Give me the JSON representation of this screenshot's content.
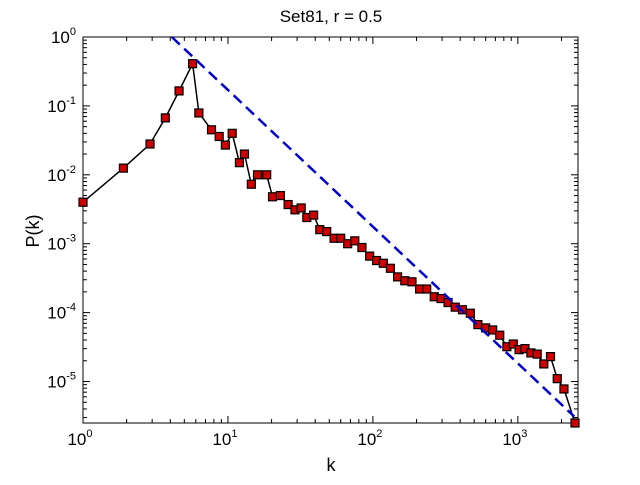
{
  "chart_data": {
    "type": "line",
    "title": "Set81, r = 0.5",
    "xlabel": "k",
    "ylabel": "P(k)",
    "xscale": "log",
    "yscale": "log",
    "xlim": [
      1,
      2600
    ],
    "ylim": [
      2.5e-06,
      1
    ],
    "grid": false,
    "legend": "none",
    "x_ticks": [
      {
        "value": 1,
        "base": "10",
        "exp": "0"
      },
      {
        "value": 10,
        "base": "10",
        "exp": "1"
      },
      {
        "value": 100,
        "base": "10",
        "exp": "2"
      },
      {
        "value": 1000,
        "base": "10",
        "exp": "3"
      }
    ],
    "y_ticks": [
      {
        "value": 1e-05,
        "base": "10",
        "exp": "-5"
      },
      {
        "value": 0.0001,
        "base": "10",
        "exp": "-4"
      },
      {
        "value": 0.001,
        "base": "10",
        "exp": "-3"
      },
      {
        "value": 0.01,
        "base": "10",
        "exp": "-2"
      },
      {
        "value": 0.1,
        "base": "10",
        "exp": "-1"
      },
      {
        "value": 1,
        "base": "10",
        "exp": "0"
      }
    ],
    "series": [
      {
        "style": "black line with red square markers",
        "color": "#000000",
        "marker_color": "#cc0000",
        "points": [
          [
            1,
            0.004
          ],
          [
            1.9,
            0.0125
          ],
          [
            2.9,
            0.028
          ],
          [
            3.7,
            0.067
          ],
          [
            4.6,
            0.165
          ],
          [
            5.7,
            0.41
          ],
          [
            6.3,
            0.079
          ],
          [
            7.7,
            0.045
          ],
          [
            8.7,
            0.036
          ],
          [
            9.6,
            0.027
          ],
          [
            10.7,
            0.04
          ],
          [
            12,
            0.015
          ],
          [
            13,
            0.02
          ],
          [
            14.5,
            0.0073
          ],
          [
            16,
            0.01
          ],
          [
            18.5,
            0.01
          ],
          [
            20.3,
            0.0048
          ],
          [
            23,
            0.005
          ],
          [
            26,
            0.0037
          ],
          [
            29,
            0.0031
          ],
          [
            32,
            0.0033
          ],
          [
            35,
            0.0024
          ],
          [
            39,
            0.0026
          ],
          [
            43,
            0.0016
          ],
          [
            48,
            0.0015
          ],
          [
            54,
            0.0012
          ],
          [
            60,
            0.0012
          ],
          [
            67,
            0.001
          ],
          [
            75,
            0.0011
          ],
          [
            84,
            0.00088
          ],
          [
            95,
            0.00066
          ],
          [
            106,
            0.00057
          ],
          [
            118,
            0.00052
          ],
          [
            132,
            0.00044
          ],
          [
            148,
            0.00033
          ],
          [
            166,
            0.00029
          ],
          [
            186,
            0.00028
          ],
          [
            210,
            0.00022
          ],
          [
            235,
            0.00022
          ],
          [
            265,
            0.00017
          ],
          [
            295,
            0.00016
          ],
          [
            330,
            0.00014
          ],
          [
            370,
            0.00012
          ],
          [
            415,
            0.00011
          ],
          [
            470,
            9.8e-05
          ],
          [
            530,
            6.7e-05
          ],
          [
            600,
            6e-05
          ],
          [
            670,
            5.6e-05
          ],
          [
            750,
            4.7e-05
          ],
          [
            840,
            3.2e-05
          ],
          [
            930,
            3.5e-05
          ],
          [
            1020,
            2.9e-05
          ],
          [
            1120,
            3e-05
          ],
          [
            1230,
            2.6e-05
          ],
          [
            1360,
            2.5e-05
          ],
          [
            1510,
            1.8e-05
          ],
          [
            1680,
            2.3e-05
          ],
          [
            1870,
            1.1e-05
          ],
          [
            2080,
            7.8e-06
          ],
          [
            2480,
            2.5e-06
          ]
        ]
      },
      {
        "style": "blue dashed line",
        "color": "#0000cc",
        "dashed": true,
        "points": [
          [
            4.1,
            1
          ],
          [
            2450,
            3.1e-06
          ]
        ]
      }
    ]
  }
}
